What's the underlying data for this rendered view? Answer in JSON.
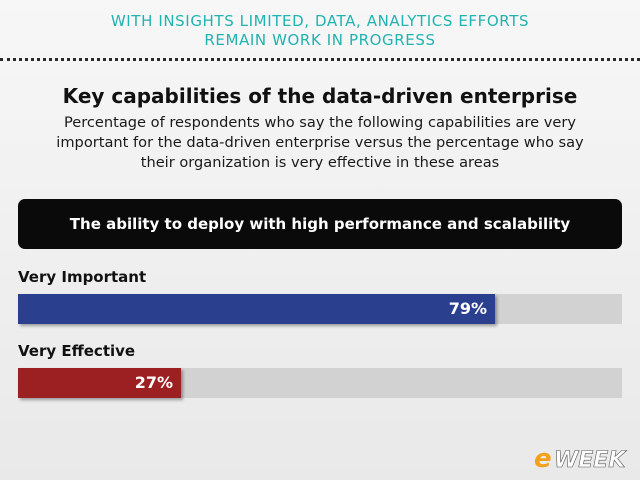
{
  "banner": {
    "line1": "WITH INSIGHTS LIMITED, DATA, ANALYTICS EFFORTS",
    "line2": "REMAIN WORK IN PROGRESS"
  },
  "brand": {
    "logo_text_e": "e",
    "logo_text_rest": "WEEK"
  },
  "colors": {
    "banner": "#20b3b0",
    "important": "#2b3f8f",
    "effective": "#9c1f22",
    "track": "#d2d2d2"
  },
  "chart_data": {
    "type": "bar",
    "orientation": "horizontal",
    "title": "Key capabilities of the data-driven enterprise",
    "subtitle_lines": [
      "Percentage of respondents who say the following capabilities are very",
      "important for the data-driven enterprise versus the percentage who say",
      "their organization is very effective in these areas"
    ],
    "categories": [
      "The ability to deploy with high performance and scalability"
    ],
    "series": [
      {
        "name": "Very Important",
        "values": [
          79
        ],
        "label": "79%",
        "color": "#2b3f8f"
      },
      {
        "name": "Very Effective",
        "values": [
          27
        ],
        "label": "27%",
        "color": "#9c1f22"
      }
    ],
    "xlim": [
      0,
      100
    ],
    "unit": "%",
    "grid": false
  }
}
